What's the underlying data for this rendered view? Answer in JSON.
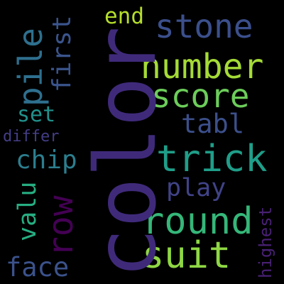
{
  "word_cloud": {
    "words": [
      {
        "text": "color",
        "color": "#3f2a7a"
      },
      {
        "text": "stone",
        "color": "#3b4f8c"
      },
      {
        "text": "end",
        "color": "#b5de2b"
      },
      {
        "text": "number",
        "color": "#a5db36"
      },
      {
        "text": "score",
        "color": "#6ccd5a"
      },
      {
        "text": "pile",
        "color": "#2e6f8e"
      },
      {
        "text": "tabl",
        "color": "#3c4f8a"
      },
      {
        "text": "first",
        "color": "#3a548c"
      },
      {
        "text": "set",
        "color": "#21918c"
      },
      {
        "text": "differ",
        "color": "#433e85"
      },
      {
        "text": "chip",
        "color": "#2c7e8e"
      },
      {
        "text": "trick",
        "color": "#1f9e89"
      },
      {
        "text": "play",
        "color": "#404387"
      },
      {
        "text": "row",
        "color": "#440154"
      },
      {
        "text": "valu",
        "color": "#27ad81"
      },
      {
        "text": "round",
        "color": "#35b779"
      },
      {
        "text": "suit",
        "color": "#8fd744"
      },
      {
        "text": "face",
        "color": "#3b528b"
      },
      {
        "text": "highest",
        "color": "#482173"
      }
    ]
  }
}
